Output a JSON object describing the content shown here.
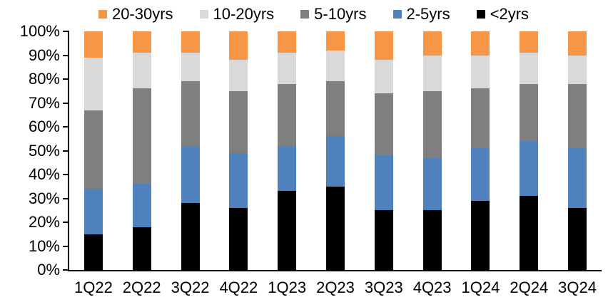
{
  "chart_data": {
    "type": "bar",
    "stacking": "percent",
    "title": "",
    "xlabel": "",
    "ylabel": "",
    "grid": false,
    "categories": [
      "1Q22",
      "2Q22",
      "3Q22",
      "4Q22",
      "1Q23",
      "2Q23",
      "3Q23",
      "4Q23",
      "1Q24",
      "2Q24",
      "3Q24"
    ],
    "series": [
      {
        "name": "<2yrs",
        "color": "#000000",
        "values": [
          15,
          18,
          28,
          26,
          33,
          35,
          25,
          25,
          29,
          31,
          26
        ]
      },
      {
        "name": "2-5yrs",
        "color": "#4F81BD",
        "values": [
          19,
          18,
          24,
          23,
          19,
          21,
          23,
          22,
          22,
          23,
          25
        ]
      },
      {
        "name": "5-10yrs",
        "color": "#7F7F7F",
        "values": [
          33,
          40,
          27,
          26,
          26,
          23,
          26,
          28,
          25,
          24,
          27
        ]
      },
      {
        "name": "10-20yrs",
        "color": "#D9D9D9",
        "values": [
          22,
          15,
          12,
          13,
          13,
          13,
          14,
          15,
          14,
          13,
          12
        ]
      },
      {
        "name": "20-30yrs",
        "color": "#F79646",
        "values": [
          11,
          9,
          9,
          12,
          9,
          8,
          12,
          10,
          10,
          9,
          10
        ]
      }
    ],
    "legend": {
      "position": "top",
      "order": [
        "20-30yrs",
        "10-20yrs",
        "5-10yrs",
        "2-5yrs",
        "<2yrs"
      ]
    },
    "yaxis": {
      "min": 0,
      "max": 100,
      "tick_step": 10,
      "ticks": [
        "0%",
        "10%",
        "20%",
        "30%",
        "40%",
        "50%",
        "60%",
        "70%",
        "80%",
        "90%",
        "100%"
      ]
    },
    "colors": {
      "axis": "#000000",
      "background": "#ffffff",
      "text": "#000000"
    }
  }
}
